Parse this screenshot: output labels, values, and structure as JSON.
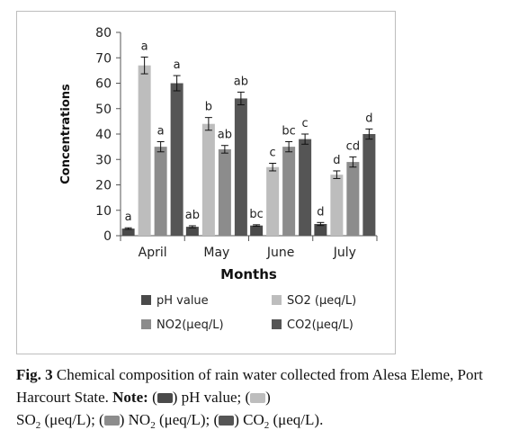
{
  "chart_data": {
    "type": "bar",
    "categories": [
      "April",
      "May",
      "June",
      "July"
    ],
    "series": [
      {
        "name": "pH value",
        "color": "#4a4a4a",
        "values": [
          2.8,
          3.5,
          4.0,
          4.6
        ],
        "errors": [
          0.3,
          0.4,
          0.3,
          0.6
        ],
        "labels": [
          "a",
          "ab",
          "bc",
          "d"
        ]
      },
      {
        "name": "SO2 (μeq/L)",
        "color": "#bdbdbd",
        "values": [
          67,
          44,
          27,
          24
        ],
        "errors": [
          3.3,
          2.5,
          1.5,
          1.5
        ],
        "labels": [
          "a",
          "b",
          "c",
          "d"
        ]
      },
      {
        "name": "NO2(μeq/L)",
        "color": "#8c8c8c",
        "values": [
          35,
          34,
          35,
          29
        ],
        "errors": [
          2.0,
          1.5,
          2.0,
          2.0
        ],
        "labels": [
          "a",
          "ab",
          "bc",
          "cd"
        ]
      },
      {
        "name": "CO2(μeq/L)",
        "color": "#555555",
        "values": [
          60,
          54,
          38,
          40
        ],
        "errors": [
          3.0,
          2.5,
          2.0,
          2.0
        ],
        "labels": [
          "a",
          "ab",
          "c",
          "d"
        ]
      }
    ],
    "ylim": [
      0,
      80
    ],
    "yticks": [
      0,
      10,
      20,
      30,
      40,
      50,
      60,
      70,
      80
    ],
    "xlabel": "Months",
    "ylabel": "Concentrations",
    "legend": "bottom",
    "grid": false
  },
  "caption": {
    "fig_label": "Fig. 3",
    "text": " Chemical composition of rain water collected from Alesa Eleme, Port Harcourt State. ",
    "note_label": "Note:",
    "open_paren": " (",
    "close_paren": ")",
    "ph": " pH value;",
    "so_prefix": " SO",
    "no_prefix": " NO",
    "co_prefix": " CO",
    "sub_2": "2",
    "unit_so": " (μeq/L);",
    "unit_no": " (μeq/L);",
    "unit_co": " (μeq/L).",
    "sw_ph": "#4a4a4a",
    "sw_so": "#bdbdbd",
    "sw_no": "#8c8c8c",
    "sw_co": "#555555"
  }
}
